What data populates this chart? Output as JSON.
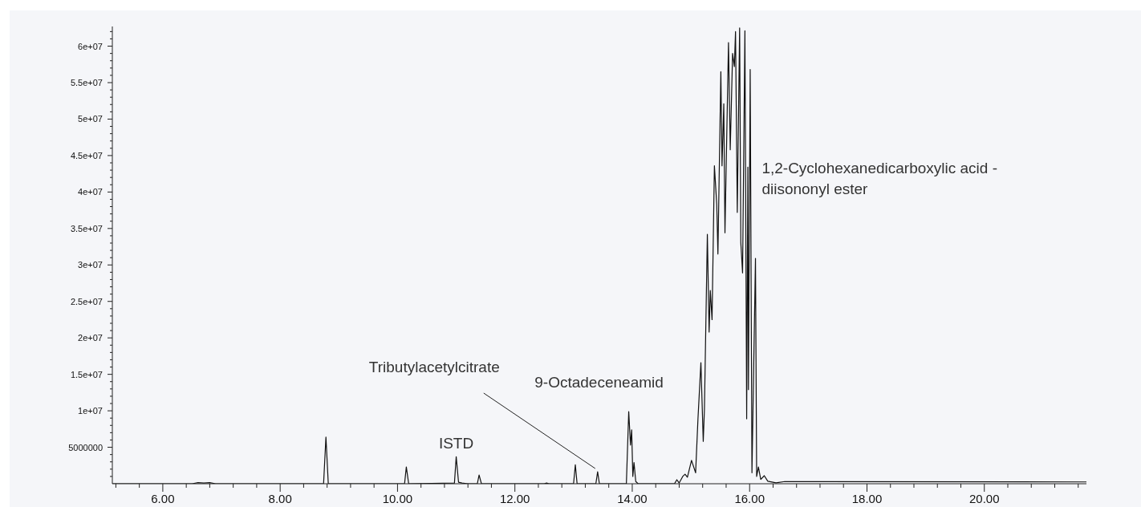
{
  "chart_data": {
    "type": "line",
    "color": "#111111",
    "line_style": "solid",
    "x": [
      5.14,
      6.5,
      6.6,
      6.7,
      6.8,
      6.9,
      8.74,
      8.78,
      8.82,
      10.12,
      10.15,
      10.19,
      10.97,
      11.0,
      11.04,
      11.1,
      11.2,
      11.36,
      11.39,
      11.43,
      12.5,
      12.54,
      12.58,
      13.0,
      13.03,
      13.06,
      13.38,
      13.41,
      13.44,
      13.9,
      13.94,
      13.97,
      13.99,
      14.01,
      14.03,
      14.06,
      14.1,
      14.72,
      14.76,
      14.8,
      14.86,
      14.9,
      14.94,
      15.01,
      15.08,
      15.12,
      15.17,
      15.21,
      15.23,
      15.28,
      15.31,
      15.33,
      15.36,
      15.4,
      15.44,
      15.46,
      15.51,
      15.53,
      15.56,
      15.58,
      15.64,
      15.67,
      15.71,
      15.74,
      15.76,
      15.79,
      15.83,
      15.85,
      15.88,
      15.92,
      15.95,
      15.97,
      15.98,
      16.01,
      16.04,
      16.1,
      16.12,
      16.15,
      16.19,
      16.25,
      16.31,
      16.45,
      16.6,
      21.74
    ],
    "values": [
      0,
      0,
      150000,
      100000,
      150000,
      0,
      0,
      6400000,
      0,
      0,
      2300000,
      0,
      100000,
      3700000,
      200000,
      100000,
      0,
      0,
      1200000,
      0,
      0,
      100000,
      0,
      0,
      2600000,
      0,
      0,
      1650000,
      0,
      0,
      9900000,
      5300000,
      7400000,
      1000000,
      2900000,
      300000,
      0,
      0,
      550000,
      100000,
      1000000,
      1300000,
      900000,
      3200000,
      1500000,
      8900000,
      16600000,
      5800000,
      10200000,
      34200000,
      20800000,
      26500000,
      22500000,
      43600000,
      38300000,
      31500000,
      56500000,
      43600000,
      52100000,
      34400000,
      60500000,
      45800000,
      59000000,
      57200000,
      62000000,
      37200000,
      62500000,
      33100000,
      28900000,
      62100000,
      8900000,
      43400000,
      12900000,
      56800000,
      1500000,
      30900000,
      1000000,
      2300000,
      600000,
      1100000,
      350000,
      130000,
      300000,
      250000
    ],
    "xlim": [
      5.14,
      21.74
    ],
    "xticks": [
      {
        "value": 5.2,
        "label": null
      },
      {
        "value": 5.6,
        "label": null
      },
      {
        "value": 6,
        "label": "6.00"
      },
      {
        "value": 6.4,
        "label": null
      },
      {
        "value": 6.8,
        "label": null
      },
      {
        "value": 7.2,
        "label": null
      },
      {
        "value": 7.6,
        "label": null
      },
      {
        "value": 8,
        "label": "8.00"
      },
      {
        "value": 8.4,
        "label": null
      },
      {
        "value": 8.8,
        "label": null
      },
      {
        "value": 9.2,
        "label": null
      },
      {
        "value": 9.6,
        "label": null
      },
      {
        "value": 10,
        "label": "10.00"
      },
      {
        "value": 10.4,
        "label": null
      },
      {
        "value": 10.8,
        "label": null
      },
      {
        "value": 11.2,
        "label": null
      },
      {
        "value": 11.6,
        "label": null
      },
      {
        "value": 12,
        "label": "12.00"
      },
      {
        "value": 12.4,
        "label": null
      },
      {
        "value": 12.8,
        "label": null
      },
      {
        "value": 13.2,
        "label": null
      },
      {
        "value": 13.6,
        "label": null
      },
      {
        "value": 14,
        "label": "14.00"
      },
      {
        "value": 14.4,
        "label": null
      },
      {
        "value": 14.8,
        "label": null
      },
      {
        "value": 15.2,
        "label": null
      },
      {
        "value": 15.6,
        "label": null
      },
      {
        "value": 16,
        "label": "16.00"
      },
      {
        "value": 16.4,
        "label": null
      },
      {
        "value": 16.8,
        "label": null
      },
      {
        "value": 17.2,
        "label": null
      },
      {
        "value": 17.6,
        "label": null
      },
      {
        "value": 18,
        "label": "18.00"
      },
      {
        "value": 18.4,
        "label": null
      },
      {
        "value": 18.8,
        "label": null
      },
      {
        "value": 19.2,
        "label": null
      },
      {
        "value": 19.6,
        "label": null
      },
      {
        "value": 20,
        "label": "20.00"
      },
      {
        "value": 20.4,
        "label": null
      },
      {
        "value": 20.8,
        "label": null
      },
      {
        "value": 21.2,
        "label": null
      },
      {
        "value": 21.6,
        "label": null
      }
    ],
    "ylim": [
      0,
      62700000
    ],
    "yticks": [
      {
        "value": 1000000,
        "label": null
      },
      {
        "value": 2000000,
        "label": null
      },
      {
        "value": 3000000,
        "label": null
      },
      {
        "value": 4000000,
        "label": null
      },
      5000000,
      {
        "value": 6000000,
        "label": null
      },
      {
        "value": 7000000,
        "label": null
      },
      {
        "value": 8000000,
        "label": null
      },
      {
        "value": 9000000,
        "label": null
      },
      {
        "value": 10000000,
        "label": "1e+07"
      },
      {
        "value": 11000000,
        "label": null
      },
      {
        "value": 12000000,
        "label": null
      },
      {
        "value": 13000000,
        "label": null
      },
      {
        "value": 14000000,
        "label": null
      },
      {
        "value": 15000000,
        "label": "1.5e+07"
      },
      {
        "value": 16000000,
        "label": null
      },
      {
        "value": 17000000,
        "label": null
      },
      {
        "value": 18000000,
        "label": null
      },
      {
        "value": 19000000,
        "label": null
      },
      {
        "value": 20000000,
        "label": "2e+07"
      },
      {
        "value": 21000000,
        "label": null
      },
      {
        "value": 22000000,
        "label": null
      },
      {
        "value": 23000000,
        "label": null
      },
      {
        "value": 24000000,
        "label": null
      },
      {
        "value": 25000000,
        "label": "2.5e+07"
      },
      {
        "value": 26000000,
        "label": null
      },
      {
        "value": 27000000,
        "label": null
      },
      {
        "value": 28000000,
        "label": null
      },
      {
        "value": 29000000,
        "label": null
      },
      {
        "value": 30000000,
        "label": "3e+07"
      },
      {
        "value": 31000000,
        "label": null
      },
      {
        "value": 32000000,
        "label": null
      },
      {
        "value": 33000000,
        "label": null
      },
      {
        "value": 34000000,
        "label": null
      },
      {
        "value": 35000000,
        "label": "3.5e+07"
      },
      {
        "value": 36000000,
        "label": null
      },
      {
        "value": 37000000,
        "label": null
      },
      {
        "value": 38000000,
        "label": null
      },
      {
        "value": 39000000,
        "label": null
      },
      {
        "value": 40000000,
        "label": "4e+07"
      },
      {
        "value": 41000000,
        "label": null
      },
      {
        "value": 42000000,
        "label": null
      },
      {
        "value": 43000000,
        "label": null
      },
      {
        "value": 44000000,
        "label": null
      },
      {
        "value": 45000000,
        "label": "4.5e+07"
      },
      {
        "value": 46000000,
        "label": null
      },
      {
        "value": 47000000,
        "label": null
      },
      {
        "value": 48000000,
        "label": null
      },
      {
        "value": 49000000,
        "label": null
      },
      {
        "value": 50000000,
        "label": "5e+07"
      },
      {
        "value": 51000000,
        "label": null
      },
      {
        "value": 52000000,
        "label": null
      },
      {
        "value": 53000000,
        "label": null
      },
      {
        "value": 54000000,
        "label": null
      },
      {
        "value": 55000000,
        "label": "5.5e+07"
      },
      {
        "value": 56000000,
        "label": null
      },
      {
        "value": 57000000,
        "label": null
      },
      {
        "value": 58000000,
        "label": null
      },
      {
        "value": 59000000,
        "label": null
      },
      {
        "value": 60000000,
        "label": "6e+07"
      },
      {
        "value": 61000000,
        "label": null
      },
      {
        "value": 62000000,
        "label": null
      }
    ],
    "annotations": [
      {
        "text": "ISTD",
        "x": 11.0,
        "y": 3700000
      },
      {
        "text": "Tributylacetylcitrate",
        "x": 13.41,
        "y": 1650000
      },
      {
        "text": "9-Octadeceneamid",
        "x": 13.94,
        "y": 9900000
      },
      {
        "text": "1,2-Cyclohexanedicarboxylic acid -\ndiisononyl ester",
        "x": 16.03,
        "y": 43000000
      }
    ]
  }
}
